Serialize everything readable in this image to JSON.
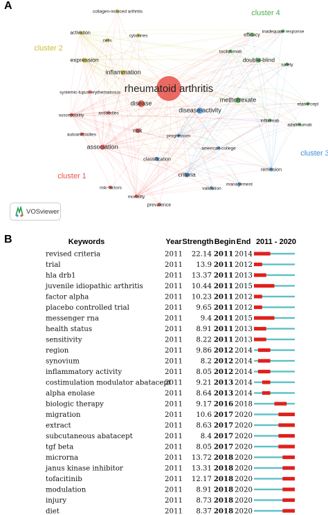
{
  "panels": {
    "a_label": "A",
    "b_label": "B"
  },
  "network": {
    "clusters": [
      {
        "name": "cluster 1",
        "color": "#e8504a"
      },
      {
        "name": "cluster 2",
        "color": "#c9c02c"
      },
      {
        "name": "cluster 3",
        "color": "#3b8fd6"
      },
      {
        "name": "cluster 4",
        "color": "#4caf50"
      }
    ],
    "nodes": [
      {
        "label": "rheumatoid arthritis",
        "cluster": 1
      },
      {
        "label": "disease",
        "cluster": 1
      },
      {
        "label": "risk",
        "cluster": 1
      },
      {
        "label": "association",
        "cluster": 1
      },
      {
        "label": "antibodies",
        "cluster": 1
      },
      {
        "label": "autoantibodies",
        "cluster": 1
      },
      {
        "label": "susceptibility",
        "cluster": 1
      },
      {
        "label": "systemic-lupus-erythematosus",
        "cluster": 1
      },
      {
        "label": "risk-factors",
        "cluster": 1
      },
      {
        "label": "mortality",
        "cluster": 1
      },
      {
        "label": "prevalence",
        "cluster": 1
      },
      {
        "label": "collagen-induced arthritis",
        "cluster": 2
      },
      {
        "label": "activation",
        "cluster": 2
      },
      {
        "label": "cytokines",
        "cluster": 2
      },
      {
        "label": "cells",
        "cluster": 2
      },
      {
        "label": "expression",
        "cluster": 2
      },
      {
        "label": "inflammation",
        "cluster": 2
      },
      {
        "label": "disease-activity",
        "cluster": 3
      },
      {
        "label": "progression",
        "cluster": 3
      },
      {
        "label": "american-college",
        "cluster": 3
      },
      {
        "label": "classification",
        "cluster": 3
      },
      {
        "label": "criteria",
        "cluster": 3
      },
      {
        "label": "validation",
        "cluster": 3
      },
      {
        "label": "management",
        "cluster": 3
      },
      {
        "label": "remission",
        "cluster": 3
      },
      {
        "label": "efficacy",
        "cluster": 4
      },
      {
        "label": "inadequate response",
        "cluster": 4
      },
      {
        "label": "tocilizumab",
        "cluster": 4
      },
      {
        "label": "double-blind",
        "cluster": 4
      },
      {
        "label": "safety",
        "cluster": 4
      },
      {
        "label": "methotrexate",
        "cluster": 4
      },
      {
        "label": "etanercept",
        "cluster": 4
      },
      {
        "label": "infliximab",
        "cluster": 4
      },
      {
        "label": "adalimumab",
        "cluster": 4
      }
    ],
    "logo_text": "VOSviewer"
  },
  "burst": {
    "headers": {
      "keywords": "Keywords",
      "year": "Year",
      "strength": "Strength",
      "begin": "Begin",
      "end": "End",
      "range": "2011 - 2020"
    },
    "range_start": 2011,
    "range_end": 2020,
    "bar_color": "#5bc0c6",
    "burst_color": "#e0201c",
    "rows": [
      {
        "keyword": "revised criteria",
        "year": "2011",
        "strength": "22.14",
        "begin": "2011",
        "end": "2014",
        "b": 2011,
        "e": 2014
      },
      {
        "keyword": "trial",
        "year": "2011",
        "strength": "13.9",
        "begin": "2011",
        "end": "2012",
        "b": 2011,
        "e": 2012
      },
      {
        "keyword": "hla drb1",
        "year": "2011",
        "strength": "13.37",
        "begin": "2011",
        "end": "2013",
        "b": 2011,
        "e": 2013
      },
      {
        "keyword": "juvenile idiopathic arthritis",
        "year": "2011",
        "strength": "10.44",
        "begin": "2011",
        "end": "2015",
        "b": 2011,
        "e": 2015
      },
      {
        "keyword": "factor alpha",
        "year": "2011",
        "strength": "10.23",
        "begin": "2011",
        "end": "2012",
        "b": 2011,
        "e": 2012
      },
      {
        "keyword": "placebo controlled trial",
        "year": "2011",
        "strength": "9.65",
        "begin": "2011",
        "end": "2012",
        "b": 2011,
        "e": 2012
      },
      {
        "keyword": "messenger rna",
        "year": "2011",
        "strength": "9.4",
        "begin": "2011",
        "end": "2015",
        "b": 2011,
        "e": 2015
      },
      {
        "keyword": "health status",
        "year": "2011",
        "strength": "8.91",
        "begin": "2011",
        "end": "2013",
        "b": 2011,
        "e": 2013
      },
      {
        "keyword": "sensitivity",
        "year": "2011",
        "strength": "8.22",
        "begin": "2011",
        "end": "2013",
        "b": 2011,
        "e": 2013
      },
      {
        "keyword": "region",
        "year": "2011",
        "strength": "9.86",
        "begin": "2012",
        "end": "2014",
        "b": 2012,
        "e": 2014
      },
      {
        "keyword": "synovium",
        "year": "2011",
        "strength": "8.2",
        "begin": "2012",
        "end": "2014",
        "b": 2012,
        "e": 2014
      },
      {
        "keyword": "inflammatory activity",
        "year": "2011",
        "strength": "8.05",
        "begin": "2012",
        "end": "2014",
        "b": 2012,
        "e": 2014
      },
      {
        "keyword": "costimulation modulator abatacept",
        "year": "2011",
        "strength": "9.21",
        "begin": "2013",
        "end": "2014",
        "b": 2013,
        "e": 2014
      },
      {
        "keyword": "alpha enolase",
        "year": "2011",
        "strength": "8.64",
        "begin": "2013",
        "end": "2014",
        "b": 2013,
        "e": 2014
      },
      {
        "keyword": "biologic therapy",
        "year": "2011",
        "strength": "9.17",
        "begin": "2016",
        "end": "2018",
        "b": 2016,
        "e": 2018
      },
      {
        "keyword": "migration",
        "year": "2011",
        "strength": "10.6",
        "begin": "2017",
        "end": "2020",
        "b": 2017,
        "e": 2020
      },
      {
        "keyword": "extract",
        "year": "2011",
        "strength": "8.63",
        "begin": "2017",
        "end": "2020",
        "b": 2017,
        "e": 2020
      },
      {
        "keyword": "subcutaneous abatacept",
        "year": "2011",
        "strength": "8.4",
        "begin": "2017",
        "end": "2020",
        "b": 2017,
        "e": 2020
      },
      {
        "keyword": "tgf beta",
        "year": "2011",
        "strength": "8.05",
        "begin": "2017",
        "end": "2020",
        "b": 2017,
        "e": 2020
      },
      {
        "keyword": "microrna",
        "year": "2011",
        "strength": "13.72",
        "begin": "2018",
        "end": "2020",
        "b": 2018,
        "e": 2020
      },
      {
        "keyword": "janus kinase inhibitor",
        "year": "2011",
        "strength": "13.31",
        "begin": "2018",
        "end": "2020",
        "b": 2018,
        "e": 2020
      },
      {
        "keyword": "tofacitinib",
        "year": "2011",
        "strength": "12.17",
        "begin": "2018",
        "end": "2020",
        "b": 2018,
        "e": 2020
      },
      {
        "keyword": "modulation",
        "year": "2011",
        "strength": "8.91",
        "begin": "2018",
        "end": "2020",
        "b": 2018,
        "e": 2020
      },
      {
        "keyword": "injury",
        "year": "2011",
        "strength": "8.73",
        "begin": "2018",
        "end": "2020",
        "b": 2018,
        "e": 2020
      },
      {
        "keyword": "diet",
        "year": "2011",
        "strength": "8.37",
        "begin": "2018",
        "end": "2020",
        "b": 2018,
        "e": 2020
      }
    ]
  }
}
